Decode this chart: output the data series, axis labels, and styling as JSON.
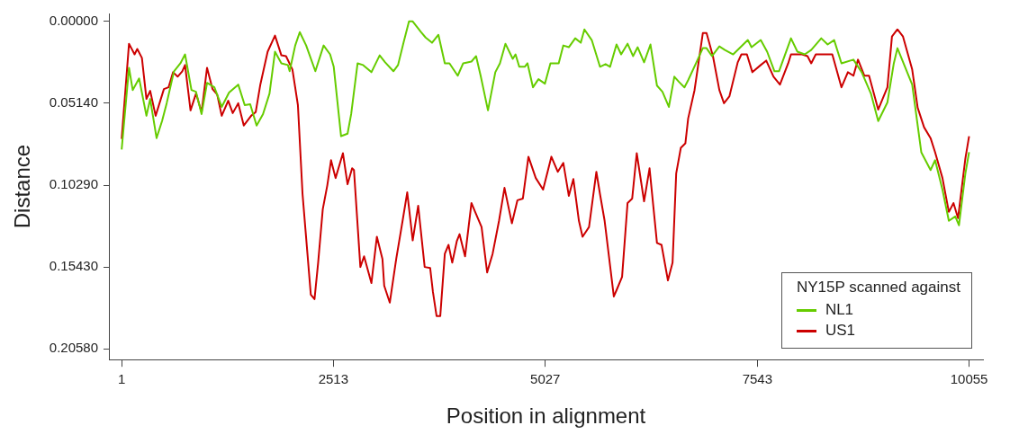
{
  "chart_data": {
    "type": "line",
    "xlabel": "Position in alignment",
    "ylabel": "Distance",
    "legend_title": "NY15P scanned against",
    "legend": "bottom right",
    "grid": false,
    "marker": "none",
    "line_style": "solid",
    "xlim": [
      -150,
      10220
    ],
    "xticks": [
      1,
      2513,
      5027,
      7543,
      10055
    ],
    "ylim": [
      0.2125,
      -0.005
    ],
    "yticks": [
      {
        "value": 0,
        "label": "0.00000"
      },
      {
        "value": 0.0514,
        "label": "0.05140"
      },
      {
        "value": 0.1029,
        "label": "0.10290"
      },
      {
        "value": 0.1543,
        "label": "0.15430"
      },
      {
        "value": 0.2058,
        "label": "0.20580"
      }
    ],
    "series": [
      {
        "name": "NL1",
        "color": "#66cc00",
        "x": [
          1,
          88,
          132,
          208,
          295,
          339,
          415,
          480,
          535,
          622,
          698,
          753,
          829,
          883,
          949,
          1014,
          1101,
          1188,
          1275,
          1384,
          1461,
          1526,
          1602,
          1678,
          1755,
          1820,
          1896,
          1973,
          1994,
          2060,
          2114,
          2190,
          2299,
          2397,
          2474,
          2517,
          2604,
          2681,
          2724,
          2800,
          2866,
          2964,
          3062,
          3127,
          3225,
          3280,
          3345,
          3410,
          3454,
          3552,
          3607,
          3683,
          3759,
          3835,
          3890,
          3988,
          4053,
          4151,
          4206,
          4260,
          4347,
          4434,
          4489,
          4554,
          4641,
          4674,
          4718,
          4783,
          4816,
          4881,
          4946,
          5023,
          5088,
          5186,
          5241,
          5306,
          5382,
          5448,
          5491,
          5578,
          5676,
          5742,
          5796,
          5872,
          5927,
          6003,
          6068,
          6123,
          6199,
          6275,
          6352,
          6417,
          6493,
          6558,
          6613,
          6678,
          6722,
          6820,
          6896,
          6940,
          7005,
          7092,
          7158,
          7256,
          7343,
          7430,
          7474,
          7583,
          7659,
          7746,
          7800,
          7942,
          8018,
          8105,
          8182,
          8301,
          8377,
          8454,
          8541,
          8683,
          8781,
          8890,
          8977,
          9086,
          9162,
          9205,
          9380,
          9488,
          9598,
          9652,
          9739,
          9815,
          9891,
          9935,
          10011,
          10055
        ],
        "values": [
          0.0805,
          0.0291,
          0.0431,
          0.0358,
          0.0593,
          0.0487,
          0.0733,
          0.0626,
          0.0514,
          0.0313,
          0.0263,
          0.0207,
          0.0431,
          0.0442,
          0.0582,
          0.0386,
          0.0414,
          0.0537,
          0.0447,
          0.0397,
          0.0526,
          0.052,
          0.0654,
          0.0582,
          0.0453,
          0.019,
          0.0263,
          0.0274,
          0.0313,
          0.0151,
          0.0067,
          0.0151,
          0.0313,
          0.0151,
          0.0207,
          0.0285,
          0.0721,
          0.0705,
          0.0582,
          0.0263,
          0.0274,
          0.0319,
          0.0213,
          0.0257,
          0.0313,
          0.0274,
          0.0134,
          0,
          0,
          0.0067,
          0.0101,
          0.0134,
          0.0084,
          0.0263,
          0.0263,
          0.0341,
          0.0263,
          0.0252,
          0.0218,
          0.0341,
          0.0559,
          0.0319,
          0.0263,
          0.014,
          0.0235,
          0.0207,
          0.0285,
          0.0285,
          0.0263,
          0.0414,
          0.0363,
          0.0391,
          0.0263,
          0.0263,
          0.0151,
          0.0162,
          0.0106,
          0.0134,
          0.005,
          0.0117,
          0.0285,
          0.0268,
          0.0285,
          0.0145,
          0.0207,
          0.014,
          0.0218,
          0.0162,
          0.0257,
          0.0145,
          0.0403,
          0.0442,
          0.0537,
          0.0347,
          0.038,
          0.0414,
          0.0369,
          0.0257,
          0.0168,
          0.0168,
          0.0218,
          0.0157,
          0.0179,
          0.0207,
          0.0162,
          0.0117,
          0.0162,
          0.0117,
          0.019,
          0.0313,
          0.0313,
          0.0106,
          0.019,
          0.0207,
          0.0179,
          0.0106,
          0.0145,
          0.0117,
          0.0263,
          0.024,
          0.0319,
          0.0453,
          0.0626,
          0.0509,
          0.0263,
          0.0168,
          0.0397,
          0.0822,
          0.0934,
          0.0872,
          0.1057,
          0.1253,
          0.1225,
          0.1281,
          0.0956,
          0.0822
        ]
      },
      {
        "name": "US1",
        "color": "#cc0000",
        "x": [
          1,
          88,
          154,
          186,
          241,
          295,
          339,
          404,
          502,
          557,
          611,
          665,
          720,
          753,
          818,
          883,
          949,
          1014,
          1079,
          1134,
          1188,
          1265,
          1319,
          1384,
          1450,
          1537,
          1591,
          1646,
          1733,
          1820,
          1896,
          1951,
          2027,
          2092,
          2147,
          2245,
          2289,
          2332,
          2387,
          2441,
          2485,
          2539,
          2626,
          2681,
          2735,
          2757,
          2833,
          2877,
          2964,
          3029,
          3095,
          3116,
          3182,
          3258,
          3334,
          3389,
          3454,
          3519,
          3596,
          3661,
          3694,
          3737,
          3781,
          3835,
          3879,
          3923,
          3977,
          4010,
          4075,
          4151,
          4195,
          4271,
          4337,
          4402,
          4478,
          4543,
          4631,
          4696,
          4761,
          4827,
          4914,
          5001,
          5099,
          5175,
          5241,
          5306,
          5360,
          5426,
          5469,
          5546,
          5633,
          5676,
          5731,
          5840,
          5872,
          5938,
          6003,
          6058,
          6112,
          6199,
          6264,
          6352,
          6406,
          6482,
          6537,
          6580,
          6635,
          6689,
          6722,
          6798,
          6896,
          6940,
          7016,
          7092,
          7147,
          7212,
          7310,
          7354,
          7419,
          7484,
          7583,
          7648,
          7735,
          7811,
          7909,
          7942,
          8073,
          8138,
          8182,
          8236,
          8432,
          8541,
          8617,
          8683,
          8737,
          8813,
          8868,
          8977,
          9086,
          9140,
          9205,
          9271,
          9380,
          9445,
          9521,
          9598,
          9652,
          9739,
          9815,
          9870,
          9924,
          10011,
          10055
        ],
        "values": [
          0.0738,
          0.014,
          0.0207,
          0.0173,
          0.0229,
          0.0487,
          0.0436,
          0.0593,
          0.0425,
          0.0414,
          0.0319,
          0.0347,
          0.0313,
          0.0274,
          0.0559,
          0.0453,
          0.057,
          0.0291,
          0.0425,
          0.0459,
          0.0593,
          0.0498,
          0.0576,
          0.0514,
          0.0654,
          0.0593,
          0.057,
          0.0397,
          0.019,
          0.0089,
          0.0213,
          0.0218,
          0.0302,
          0.0526,
          0.1085,
          0.1717,
          0.1745,
          0.1516,
          0.118,
          0.1029,
          0.0872,
          0.0984,
          0.0828,
          0.1023,
          0.0923,
          0.0934,
          0.1543,
          0.1476,
          0.1644,
          0.1353,
          0.1493,
          0.1661,
          0.1767,
          0.1493,
          0.1253,
          0.1074,
          0.1376,
          0.1158,
          0.1543,
          0.1549,
          0.17,
          0.1851,
          0.1851,
          0.146,
          0.1404,
          0.1516,
          0.1381,
          0.1337,
          0.1476,
          0.1141,
          0.1197,
          0.1292,
          0.1577,
          0.146,
          0.1253,
          0.1046,
          0.1269,
          0.1124,
          0.1113,
          0.085,
          0.0984,
          0.1057,
          0.085,
          0.0945,
          0.0889,
          0.1096,
          0.099,
          0.1253,
          0.1353,
          0.1292,
          0.0945,
          0.1085,
          0.1253,
          0.1728,
          0.1689,
          0.1605,
          0.1141,
          0.1113,
          0.0828,
          0.113,
          0.0923,
          0.1392,
          0.1404,
          0.1627,
          0.1516,
          0.0956,
          0.0794,
          0.0766,
          0.061,
          0.0431,
          0.0073,
          0.0073,
          0.0218,
          0.0431,
          0.0514,
          0.047,
          0.0257,
          0.0207,
          0.0207,
          0.0319,
          0.0274,
          0.0246,
          0.0347,
          0.0397,
          0.0263,
          0.0207,
          0.0207,
          0.0218,
          0.0263,
          0.0207,
          0.0207,
          0.0414,
          0.0319,
          0.0341,
          0.024,
          0.0341,
          0.0341,
          0.0554,
          0.0414,
          0.0095,
          0.005,
          0.0095,
          0.0302,
          0.0542,
          0.0665,
          0.0733,
          0.0822,
          0.0984,
          0.1197,
          0.1141,
          0.1236,
          0.0861,
          0.0721
        ]
      }
    ]
  }
}
